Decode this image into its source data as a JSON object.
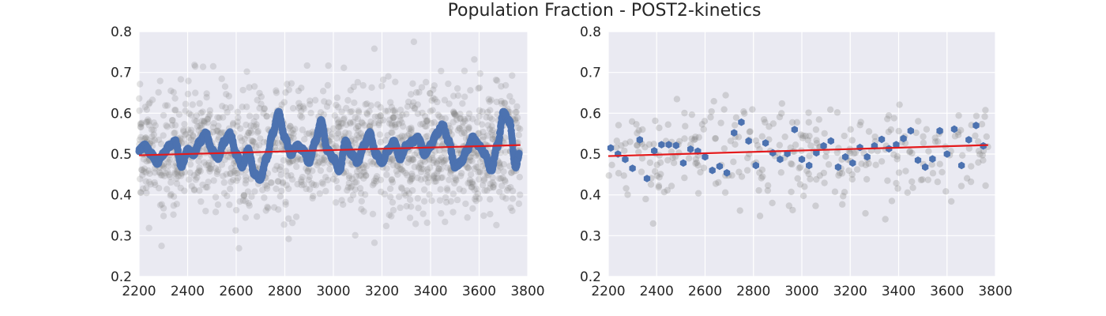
{
  "figure": {
    "title": "Population Fraction - POST2-kinetics"
  },
  "colors": {
    "axes_background": "#eaeaf2",
    "grid": "#ffffff",
    "raw_points": "#808080",
    "smoothed_points": "#4c72b0",
    "fit_line": "#e41a1c"
  },
  "chart_data": [
    {
      "type": "scatter",
      "panel": "left",
      "title": "",
      "xlabel": "",
      "ylabel": "",
      "xlim": [
        2200,
        3800
      ],
      "ylim": [
        0.2,
        0.8
      ],
      "xticks": [
        2200,
        2400,
        2600,
        2800,
        3000,
        3200,
        3400,
        3600,
        3800
      ],
      "yticks": [
        0.2,
        0.3,
        0.4,
        0.5,
        0.6,
        0.7,
        0.8
      ],
      "grid": true,
      "legend": "none",
      "raw_scatter": {
        "x_range": [
          2200,
          3770
        ],
        "mean": 0.51,
        "spread": 0.13,
        "min_observed": 0.245,
        "max_observed": 0.79,
        "approx_count": 1500,
        "color": "gray, semi-transparent"
      },
      "smoothed_series": {
        "x": [
          2200,
          2225,
          2250,
          2275,
          2300,
          2325,
          2350,
          2375,
          2400,
          2425,
          2450,
          2475,
          2500,
          2525,
          2550,
          2575,
          2600,
          2625,
          2650,
          2675,
          2700,
          2725,
          2750,
          2775,
          2800,
          2825,
          2850,
          2875,
          2900,
          2925,
          2950,
          2975,
          3000,
          3025,
          3050,
          3075,
          3100,
          3125,
          3150,
          3175,
          3200,
          3225,
          3250,
          3275,
          3300,
          3325,
          3350,
          3375,
          3400,
          3425,
          3450,
          3475,
          3500,
          3525,
          3550,
          3575,
          3600,
          3625,
          3650,
          3675,
          3700,
          3725,
          3750,
          3765
        ],
        "y": [
          0.51,
          0.52,
          0.5,
          0.48,
          0.5,
          0.52,
          0.53,
          0.47,
          0.51,
          0.5,
          0.53,
          0.55,
          0.51,
          0.49,
          0.53,
          0.55,
          0.5,
          0.47,
          0.51,
          0.45,
          0.44,
          0.49,
          0.55,
          0.6,
          0.54,
          0.5,
          0.52,
          0.51,
          0.48,
          0.53,
          0.58,
          0.51,
          0.49,
          0.46,
          0.53,
          0.5,
          0.48,
          0.52,
          0.55,
          0.5,
          0.48,
          0.51,
          0.53,
          0.49,
          0.52,
          0.53,
          0.54,
          0.5,
          0.52,
          0.55,
          0.57,
          0.53,
          0.47,
          0.48,
          0.51,
          0.54,
          0.52,
          0.5,
          0.46,
          0.52,
          0.6,
          0.58,
          0.47,
          0.5
        ],
        "color": "blue"
      },
      "fit_line": {
        "x": [
          2200,
          3770
        ],
        "y": [
          0.497,
          0.522
        ],
        "color": "red"
      }
    },
    {
      "type": "scatter",
      "panel": "right",
      "title": "",
      "xlabel": "",
      "ylabel": "",
      "xlim": [
        2200,
        3800
      ],
      "ylim": [
        0.2,
        0.8
      ],
      "xticks": [
        2200,
        2400,
        2600,
        2800,
        3000,
        3200,
        3400,
        3600,
        3800
      ],
      "yticks": [
        0.2,
        0.3,
        0.4,
        0.5,
        0.6,
        0.7,
        0.8
      ],
      "grid": true,
      "legend": "none",
      "raw_scatter": {
        "x_range": [
          2200,
          3770
        ],
        "mean": 0.5,
        "spread": 0.1,
        "min_observed": 0.24,
        "max_observed": 0.77,
        "approx_count": 320,
        "color": "light gray, semi-transparent"
      },
      "binned_series": {
        "x": [
          2210,
          2240,
          2270,
          2300,
          2330,
          2360,
          2390,
          2420,
          2450,
          2480,
          2510,
          2540,
          2570,
          2600,
          2630,
          2660,
          2690,
          2720,
          2750,
          2780,
          2810,
          2850,
          2880,
          2910,
          2940,
          2970,
          3000,
          3030,
          3060,
          3090,
          3120,
          3150,
          3180,
          3210,
          3240,
          3270,
          3300,
          3330,
          3360,
          3390,
          3420,
          3450,
          3480,
          3510,
          3540,
          3570,
          3600,
          3630,
          3660,
          3690,
          3720,
          3750
        ],
        "y": [
          0.515,
          0.5,
          0.487,
          0.465,
          0.535,
          0.44,
          0.508,
          0.523,
          0.523,
          0.521,
          0.478,
          0.512,
          0.507,
          0.493,
          0.46,
          0.47,
          0.454,
          0.552,
          0.578,
          0.532,
          0.472,
          0.527,
          0.503,
          0.487,
          0.501,
          0.56,
          0.487,
          0.472,
          0.503,
          0.52,
          0.532,
          0.468,
          0.493,
          0.478,
          0.516,
          0.493,
          0.52,
          0.536,
          0.513,
          0.523,
          0.538,
          0.557,
          0.485,
          0.468,
          0.488,
          0.557,
          0.5,
          0.561,
          0.472,
          0.535,
          0.57,
          0.52
        ],
        "color": "blue"
      },
      "fit_line": {
        "x": [
          2200,
          3770
        ],
        "y": [
          0.495,
          0.522
        ],
        "color": "red"
      }
    }
  ]
}
